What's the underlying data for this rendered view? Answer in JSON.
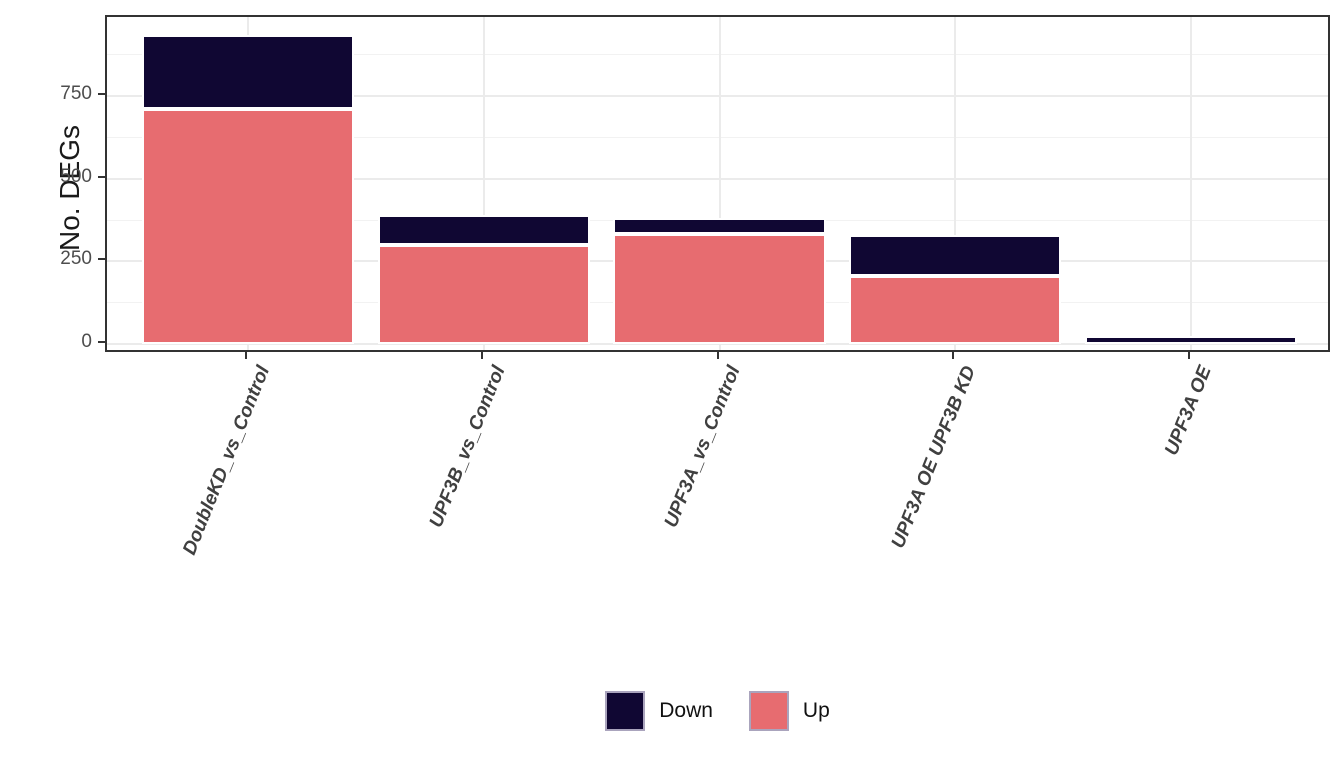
{
  "figure": {
    "background": "#ffffff",
    "panel_border_color": "#333333",
    "grid_major_color": "#ebebeb",
    "grid_minor_color": "#f2f2f2",
    "tick_mark_color": "#333333",
    "y_tick_text_color": "#4d4d4d",
    "x_tick_text_color": "#404040",
    "bar_stroke_color": "#ffffff"
  },
  "chart_data": {
    "type": "bar",
    "stacked": true,
    "orientation": "vertical",
    "title": "",
    "xlabel": "",
    "ylabel": "No. DEGs",
    "categories": [
      "DoubleKD_vs_Control",
      "UPF3B_vs_Control",
      "UPF3A_vs_Control",
      "UPF3A OE UPF3B KD",
      "UPF3A OE"
    ],
    "series": [
      {
        "name": "Down",
        "color": "#100733",
        "values": [
          225,
          90,
          50,
          124,
          25
        ]
      },
      {
        "name": "Up",
        "color": "#E76C70",
        "values": [
          712,
          300,
          333,
          206,
          0
        ]
      }
    ],
    "stack_order_bottom_to_top": [
      "Up",
      "Down"
    ],
    "totals": [
      937,
      390,
      383,
      330,
      25
    ],
    "y_ticks": [
      0,
      250,
      500,
      750
    ],
    "y_minor_ticks": [
      125,
      375,
      625,
      875
    ],
    "ylim": [
      -30,
      990
    ],
    "bar_width_fraction": 0.9,
    "x_tick_label_angle_deg": -68,
    "grid": true,
    "legend": {
      "position": "bottom",
      "entries": [
        "Down",
        "Up"
      ]
    }
  }
}
